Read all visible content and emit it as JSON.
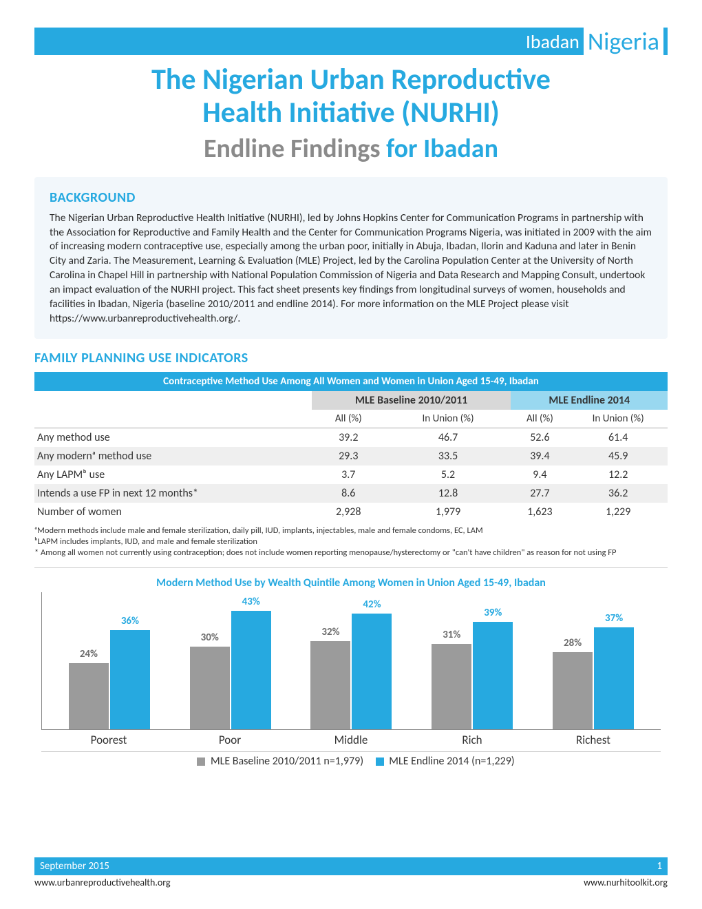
{
  "header": {
    "city": "Ibadan",
    "country": "Nigeria",
    "title_line1": "The Nigerian Urban Reproductive",
    "title_line2": "Health Initiative (NURHI)",
    "sub_grey": "Endline Findings",
    "sub_blue": "for Ibadan"
  },
  "background": {
    "heading": "BACKGROUND",
    "text": "The Nigerian Urban Reproductive Health Initiative (NURHI), led by Johns Hopkins Center for Communication Programs in partnership with the Association for Reproductive and Family Health and the Center for Communication Programs Nigeria, was initiated in 2009 with the aim of increasing modern contraceptive use, especially among the urban poor, initially in Abuja, Ibadan, Ilorin and Kaduna and later in Benin City and Zaria. The Measurement, Learning & Evaluation (MLE) Project, led by the Carolina Population Center at the University of North Carolina in Chapel Hill in partnership with National Population Commission of Nigeria and Data Research and Mapping Consult, undertook an impact evaluation of the NURHI project. This fact sheet presents key findings from longitudinal surveys of women, households and facilities in Ibadan, Nigeria (baseline 2010/2011 and endline 2014). For more information on the MLE Project please visit https://www.urbanreproductivehealth.org/."
  },
  "indicators_heading": "FAMILY PLANNING USE INDICATORS",
  "table": {
    "title": "Contraceptive Method Use Among All Women and Women in Union Aged 15-49, Ibadan",
    "period_baseline": "MLE  Baseline 2010/2011",
    "period_endline": "MLE  Endline 2014",
    "subheads": [
      "All (%)",
      "In Union (%)",
      "All (%)",
      "In Union (%)"
    ],
    "rows": [
      {
        "label": "Any method use",
        "vals": [
          "39.2",
          "46.7",
          "52.6",
          "61.4"
        ],
        "alt": false
      },
      {
        "label": "Any modernᵃ method use",
        "vals": [
          "29.3",
          "33.5",
          "39.4",
          "45.9"
        ],
        "alt": true
      },
      {
        "label": "Any LAPMᵇ use",
        "vals": [
          "3.7",
          "5.2",
          "9.4",
          "12.2"
        ],
        "alt": false
      },
      {
        "label": "Intends a use FP in next 12 months*",
        "vals": [
          "8.6",
          "12.8",
          "27.7",
          "36.2"
        ],
        "alt": true
      },
      {
        "label": "Number of women",
        "vals": [
          "2,928",
          "1,979",
          "1,623",
          "1,229"
        ],
        "alt": false
      }
    ]
  },
  "footnotes": {
    "a": "ᵃModern methods include male and female sterilization, daily pill, IUD, implants, injectables, male and female condoms, EC, LAM",
    "b": "ᵇLAPM includes implants, IUD, and male and female sterilization",
    "star": "* Among all women not currently using contraception; does not include women reporting menopause/hysterectomy or \"can't have children\" as reason for not using FP"
  },
  "chart": {
    "title": "Modern Method Use by Wealth Quintile Among Women in Union Aged 15-49, Ibadan",
    "type": "bar",
    "categories": [
      "Poorest",
      "Poor",
      "Middle",
      "Rich",
      "Richest"
    ],
    "baseline": [
      24,
      30,
      32,
      31,
      28
    ],
    "endline": [
      36,
      43,
      42,
      39,
      37
    ],
    "baseline_labels": [
      "24%",
      "30%",
      "32%",
      "31%",
      "28%"
    ],
    "endline_labels": [
      "36%",
      "43%",
      "42%",
      "39%",
      "37%"
    ],
    "ymax": 50,
    "colors": {
      "baseline": "#9b9b9b",
      "endline": "#26a9e0"
    },
    "legend_baseline": "MLE Baseline 2010/2011 n=1,979)",
    "legend_endline": "MLE Endline 2014 (n=1,229)"
  },
  "footer": {
    "date": "September 2015",
    "page": "1",
    "url_left": "www.urbanreproductivehealth.org",
    "url_right": "www.nurhitoolkit.org"
  }
}
